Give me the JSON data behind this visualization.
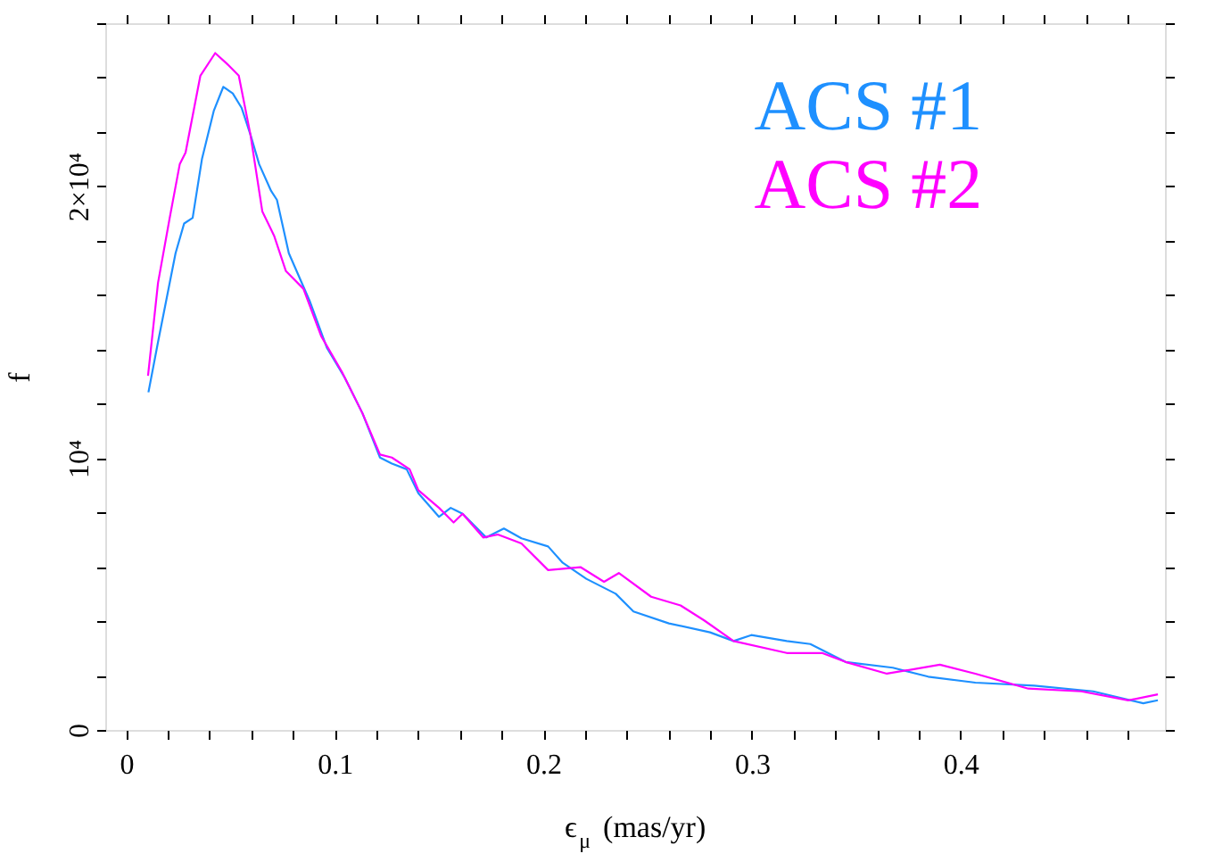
{
  "chart_data": {
    "type": "line",
    "xlabel": "ϵ$_{μ}$ (mas/yr)",
    "ylabel": "f",
    "legend": "top right",
    "grid": false,
    "marker": "none",
    "line_style": "solid",
    "xlim": [
      -0.01,
      0.498
    ],
    "ylim": [
      0,
      26000
    ],
    "xticks": [
      0,
      {
        "value": 0.02,
        "label": null
      },
      {
        "value": 0.04,
        "label": null
      },
      {
        "value": 0.06,
        "label": null
      },
      {
        "value": 0.08,
        "label": null
      },
      0.1,
      {
        "value": 0.12,
        "label": null
      },
      {
        "value": 0.14,
        "label": null
      },
      {
        "value": 0.16,
        "label": null
      },
      {
        "value": 0.18,
        "label": null
      },
      0.2,
      {
        "value": 0.22,
        "label": null
      },
      {
        "value": 0.24,
        "label": null
      },
      {
        "value": 0.26,
        "label": null
      },
      {
        "value": 0.28,
        "label": null
      },
      0.3,
      {
        "value": 0.32,
        "label": null
      },
      {
        "value": 0.34,
        "label": null
      },
      {
        "value": 0.36,
        "label": null
      },
      {
        "value": 0.38,
        "label": null
      },
      0.4,
      {
        "value": 0.42,
        "label": null
      },
      {
        "value": 0.44,
        "label": null
      },
      {
        "value": 0.46,
        "label": null
      },
      {
        "value": 0.48,
        "label": null
      }
    ],
    "yticks": [
      0,
      {
        "value": 2000,
        "label": null
      },
      {
        "value": 4000,
        "label": null
      },
      {
        "value": 6000,
        "label": null
      },
      {
        "value": 8000,
        "label": null
      },
      {
        "value": 10000,
        "label": "10⁴"
      },
      {
        "value": 12000,
        "label": null
      },
      {
        "value": 14000,
        "label": null
      },
      {
        "value": 16000,
        "label": null
      },
      {
        "value": 18000,
        "label": null
      },
      {
        "value": 20000,
        "label": "2×10⁴"
      },
      {
        "value": 22000,
        "label": null
      },
      {
        "value": 24000,
        "label": null
      },
      {
        "value": 26000,
        "label": null
      }
    ],
    "series": [
      {
        "name": "ACS #1",
        "color": "#1e90ff",
        "x": [
          0.0107,
          0.0153,
          0.0237,
          0.0278,
          0.0319,
          0.0364,
          0.042,
          0.0466,
          0.0511,
          0.0554,
          0.0596,
          0.0638,
          0.0695,
          0.0723,
          0.078,
          0.0879,
          0.0963,
          0.1048,
          0.1133,
          0.1217,
          0.1274,
          0.1345,
          0.1401,
          0.15,
          0.1556,
          0.1613,
          0.1726,
          0.1811,
          0.1895,
          0.2023,
          0.2093,
          0.2206,
          0.2347,
          0.2432,
          0.2602,
          0.2799,
          0.2912,
          0.2997,
          0.3167,
          0.328,
          0.3449,
          0.3675,
          0.3845,
          0.4071,
          0.4353,
          0.4636,
          0.4876,
          0.4946
        ],
        "values": [
          12420,
          14270,
          17540,
          18630,
          18840,
          21020,
          22770,
          23660,
          23420,
          22880,
          21900,
          20810,
          19830,
          19500,
          17540,
          15800,
          14050,
          12960,
          11650,
          10020,
          9800,
          9590,
          8710,
          7840,
          8170,
          7950,
          7080,
          7410,
          7050,
          6750,
          6150,
          5560,
          5010,
          4360,
          3920,
          3590,
          3270,
          3490,
          3270,
          3160,
          2500,
          2290,
          1960,
          1740,
          1630,
          1420,
          980,
          1090
        ]
      },
      {
        "name": "ACS #2",
        "color": "#ff00ff",
        "x": [
          0.0105,
          0.0153,
          0.0209,
          0.0257,
          0.0285,
          0.0356,
          0.0427,
          0.0483,
          0.054,
          0.0596,
          0.0653,
          0.0709,
          0.0766,
          0.085,
          0.0935,
          0.1034,
          0.1133,
          0.1217,
          0.1274,
          0.1359,
          0.1401,
          0.15,
          0.157,
          0.1613,
          0.1712,
          0.1782,
          0.1895,
          0.2023,
          0.2178,
          0.2291,
          0.2362,
          0.2517,
          0.2658,
          0.2771,
          0.2912,
          0.3167,
          0.3336,
          0.3449,
          0.3647,
          0.3901,
          0.4071,
          0.4325,
          0.4579,
          0.4805,
          0.4946
        ],
        "values": [
          13030,
          16450,
          18840,
          20810,
          21240,
          24070,
          24900,
          24510,
          24070,
          21900,
          19070,
          18190,
          16880,
          16230,
          14490,
          13180,
          11650,
          10130,
          10020,
          9590,
          8820,
          8170,
          7630,
          7950,
          7080,
          7190,
          6860,
          5880,
          5990,
          5450,
          5770,
          4900,
          4580,
          4030,
          3270,
          2830,
          2830,
          2500,
          2070,
          2400,
          2070,
          1520,
          1420,
          1090,
          1310
        ]
      }
    ]
  }
}
